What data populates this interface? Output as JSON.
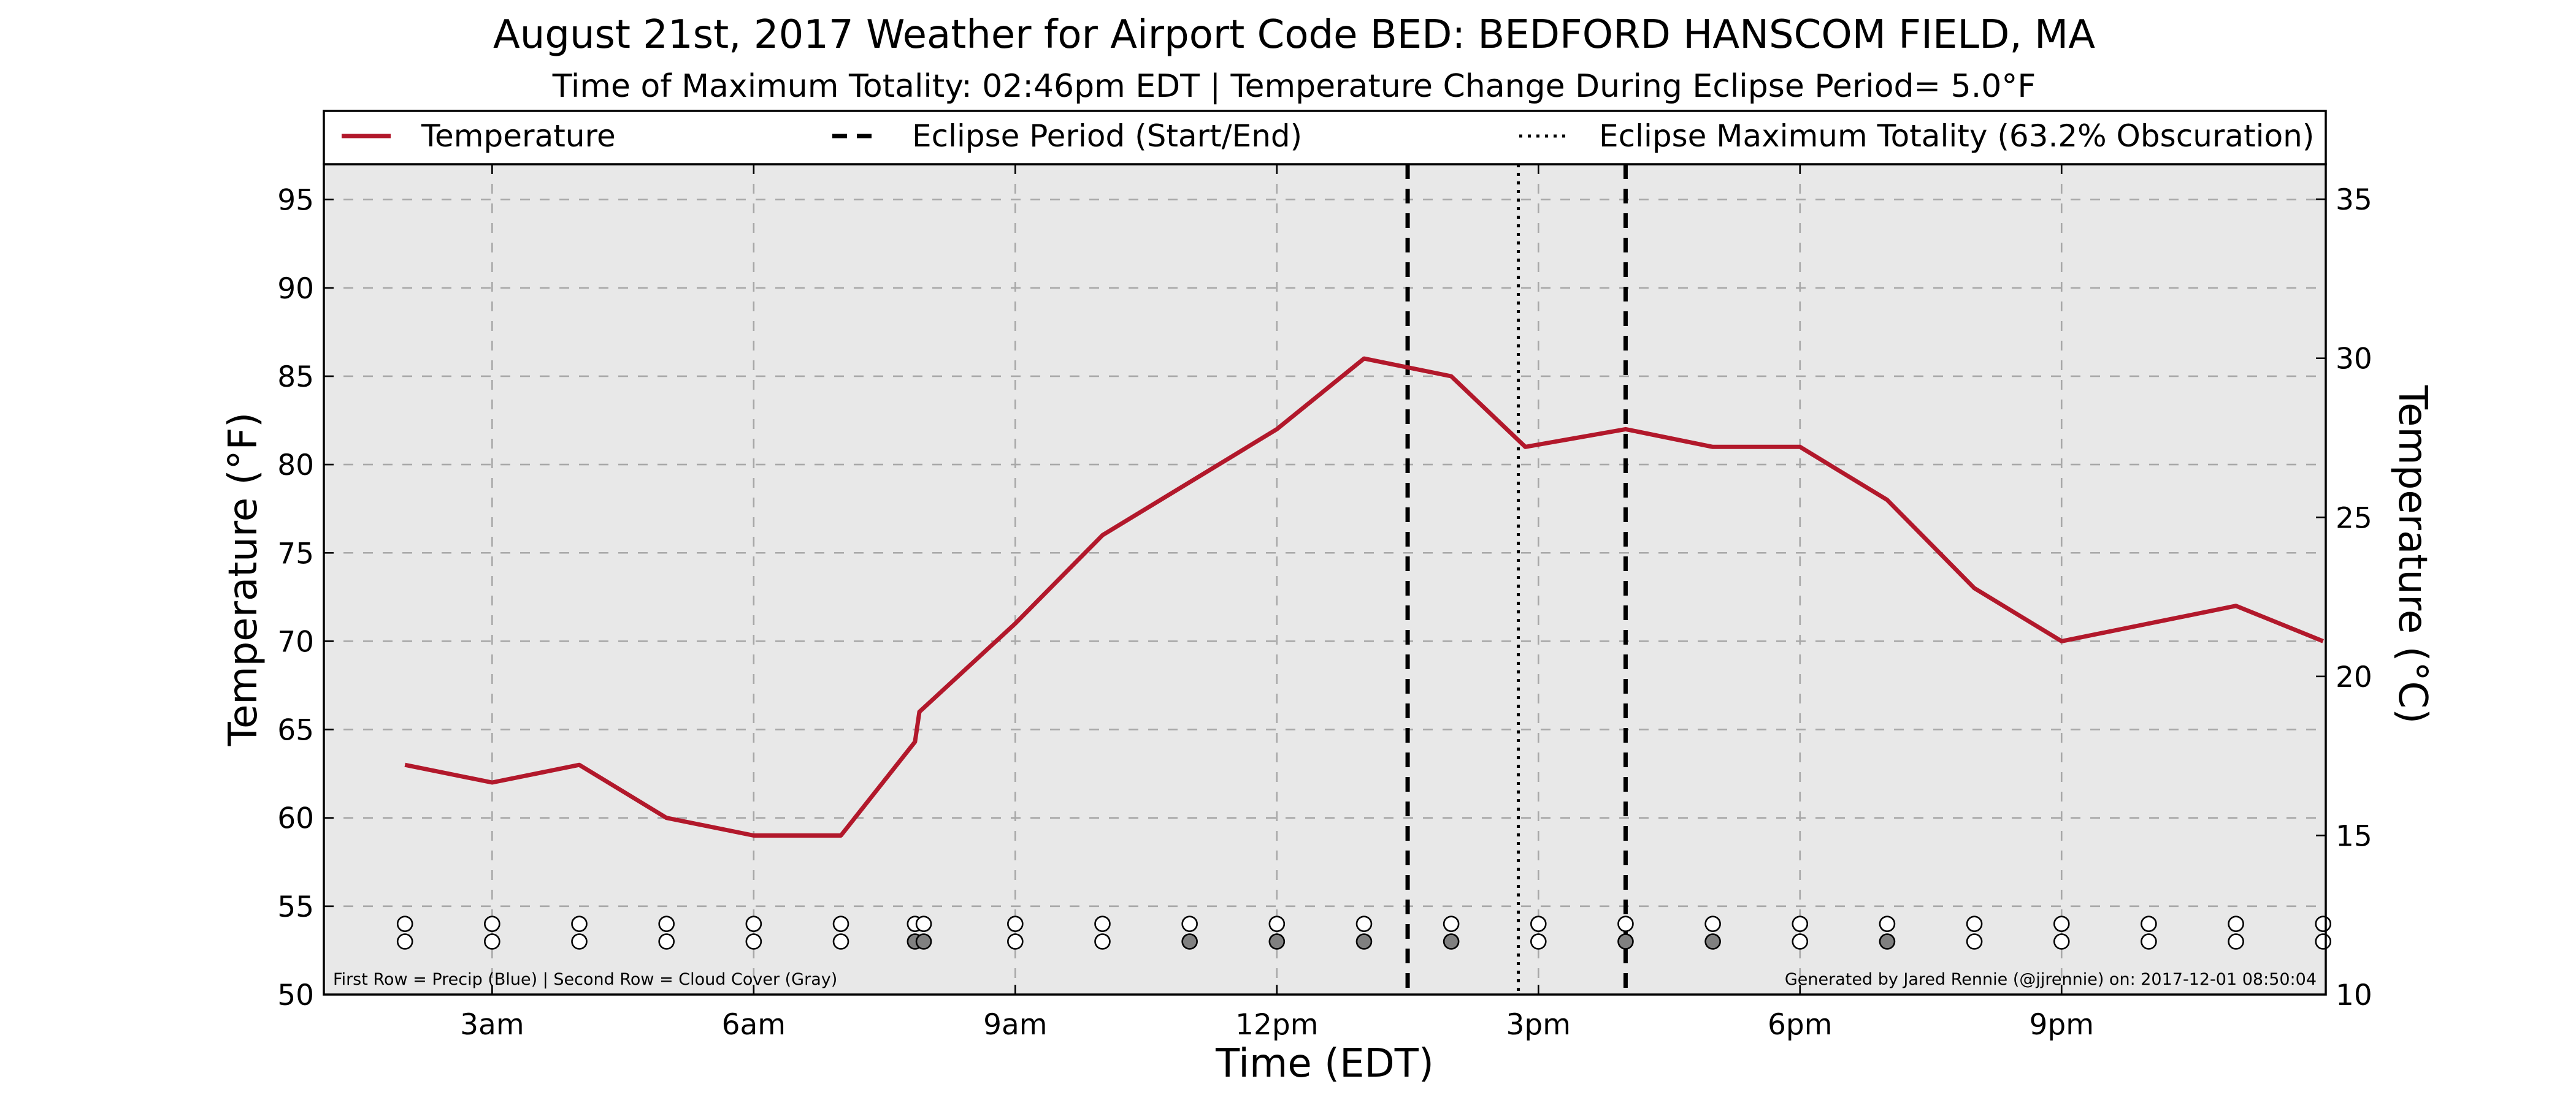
{
  "chart_data": {
    "type": "line",
    "title": "August 21st, 2017 Weather for Airport Code BED: BEDFORD HANSCOM FIELD, MA",
    "subtitle": "Time of Maximum Totality: 02:46pm EDT | Temperature Change During Eclipse Period= 5.0°F",
    "xlabel": "Time (EDT)",
    "ylabel": "Temperature (°F)",
    "ylabel_right": "Temperature (°C)",
    "xlim": [
      1.07,
      24.03
    ],
    "ylim": [
      50,
      97
    ],
    "ylim_right": [
      10,
      36.1
    ],
    "x_ticks": [
      {
        "value": 3,
        "label": "3am"
      },
      {
        "value": 6,
        "label": "6am"
      },
      {
        "value": 9,
        "label": "9am"
      },
      {
        "value": 12,
        "label": "12pm"
      },
      {
        "value": 15,
        "label": "3pm"
      },
      {
        "value": 18,
        "label": "6pm"
      },
      {
        "value": 21,
        "label": "9pm"
      }
    ],
    "y_ticks": [
      50,
      55,
      60,
      65,
      70,
      75,
      80,
      85,
      90,
      95
    ],
    "y_ticks_right": [
      10,
      15,
      20,
      25,
      30,
      35
    ],
    "grid": true,
    "legend_position": "top",
    "legend": [
      {
        "label": "Temperature",
        "style": "solid",
        "color": "#b2182b"
      },
      {
        "label": "Eclipse Period (Start/End)",
        "style": "dashed",
        "color": "#000000"
      },
      {
        "label": "Eclipse Maximum Totality (63.2% Obscuration)",
        "style": "dotted",
        "color": "#000000"
      }
    ],
    "series": [
      {
        "name": "Temperature",
        "color": "#b2182b",
        "x": [
          2.0,
          3.0,
          4.0,
          5.0,
          6.0,
          7.0,
          7.85,
          7.9,
          9.0,
          10.0,
          11.0,
          12.0,
          13.0,
          14.0,
          14.85,
          16.0,
          17.0,
          18.0,
          19.0,
          20.0,
          21.0,
          22.0,
          23.0,
          24.0
        ],
        "y": [
          63,
          62,
          63,
          60,
          59,
          59,
          64.3,
          66,
          71,
          76,
          79,
          82,
          86,
          85,
          81,
          82,
          81,
          81,
          78,
          73,
          70,
          71,
          72,
          70
        ]
      }
    ],
    "eclipse_start": 13.5,
    "eclipse_end": 16.0,
    "eclipse_max": 14.77,
    "precip_markers": {
      "x": [
        2.0,
        3.0,
        4.0,
        5.0,
        6.0,
        7.0,
        7.85,
        7.95,
        9.0,
        10.0,
        11.0,
        12.0,
        13.0,
        14.0,
        15.0,
        16.0,
        17.0,
        18.0,
        19.0,
        20.0,
        21.0,
        22.0,
        23.0,
        24.0
      ],
      "fill": "#ffffff"
    },
    "cloud_markers": {
      "x": [
        2.0,
        3.0,
        4.0,
        5.0,
        6.0,
        7.0,
        7.85,
        7.95,
        9.0,
        10.0,
        11.0,
        12.0,
        13.0,
        14.0,
        15.0,
        16.0,
        17.0,
        18.0,
        19.0,
        20.0,
        21.0,
        22.0,
        23.0,
        24.0
      ],
      "fills": [
        "#ffffff",
        "#ffffff",
        "#ffffff",
        "#ffffff",
        "#ffffff",
        "#ffffff",
        "#808080",
        "#808080",
        "#ffffff",
        "#ffffff",
        "#808080",
        "#808080",
        "#808080",
        "#808080",
        "#ffffff",
        "#808080",
        "#808080",
        "#ffffff",
        "#808080",
        "#ffffff",
        "#ffffff",
        "#ffffff",
        "#ffffff",
        "#ffffff"
      ]
    },
    "annotation_left": "First Row = Precip (Blue) | Second Row = Cloud Cover (Gray)",
    "annotation_right": "Generated by Jared Rennie (@jjrennie) on: 2017-12-01 08:50:04"
  }
}
